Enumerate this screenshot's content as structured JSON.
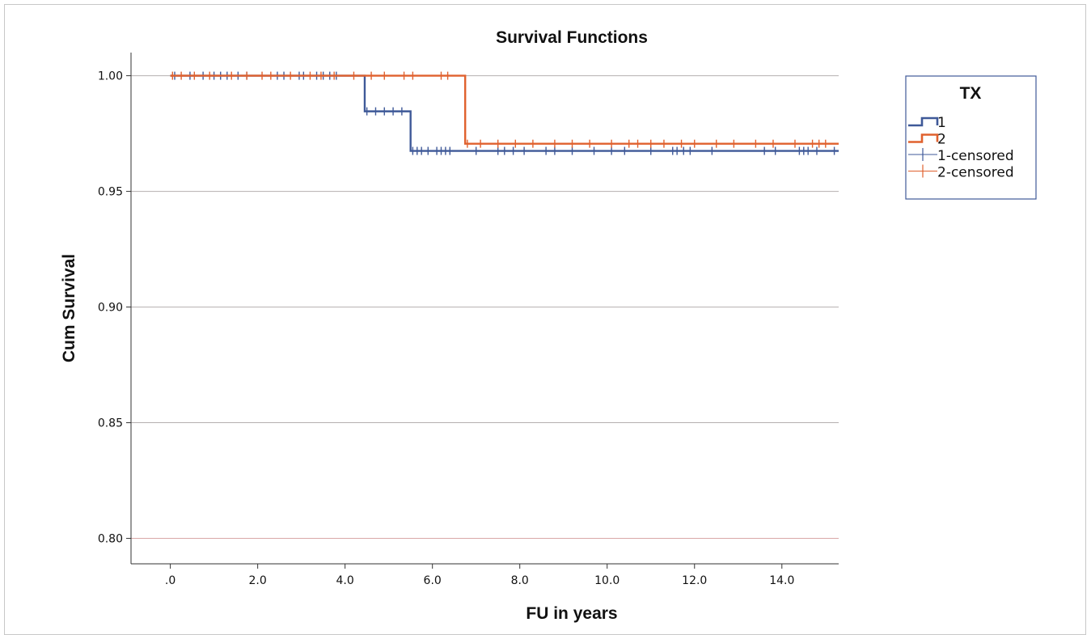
{
  "chart_data": {
    "type": "line",
    "subtype": "kaplan-meier",
    "title": "Survival Functions",
    "xlabel": "FU in years",
    "ylabel": "Cum Survival",
    "xlim": [
      -0.9,
      15.3
    ],
    "ylim": [
      0.789,
      1.01
    ],
    "xticks": [
      0,
      2,
      4,
      6,
      8,
      10,
      12,
      14
    ],
    "xtick_labels": [
      ".0",
      "2.0",
      "4.0",
      "6.0",
      "8.0",
      "10.0",
      "12.0",
      "14.0"
    ],
    "yticks": [
      0.8,
      0.85,
      0.9,
      0.95,
      1.0
    ],
    "ytick_labels": [
      "0.80",
      "0.85",
      "0.90",
      "0.95",
      "1.00"
    ],
    "grid": "horizontal",
    "legend": {
      "title": "TX",
      "position": "top-right",
      "entries": [
        {
          "label": "1",
          "kind": "step",
          "series": 0
        },
        {
          "label": "2",
          "kind": "step",
          "series": 1
        },
        {
          "label": "1-censored",
          "kind": "censor",
          "series": 0
        },
        {
          "label": "2-censored",
          "kind": "censor",
          "series": 1
        }
      ]
    },
    "series": [
      {
        "name": "1",
        "color": "#3f5998",
        "steps": [
          [
            0,
            1.0
          ],
          [
            4.45,
            0.9846
          ],
          [
            5.5,
            0.9675
          ],
          [
            15.3,
            0.9675
          ]
        ],
        "censored": [
          [
            0.1,
            1.0
          ],
          [
            0.45,
            1.0
          ],
          [
            0.75,
            1.0
          ],
          [
            1.0,
            1.0
          ],
          [
            1.15,
            1.0
          ],
          [
            1.3,
            1.0
          ],
          [
            1.55,
            1.0
          ],
          [
            1.75,
            1.0
          ],
          [
            2.45,
            1.0
          ],
          [
            2.6,
            1.0
          ],
          [
            2.95,
            1.0
          ],
          [
            3.05,
            1.0
          ],
          [
            3.35,
            1.0
          ],
          [
            3.5,
            1.0
          ],
          [
            3.65,
            1.0
          ],
          [
            3.8,
            1.0
          ],
          [
            4.5,
            0.9846
          ],
          [
            4.7,
            0.9846
          ],
          [
            4.9,
            0.9846
          ],
          [
            5.1,
            0.9846
          ],
          [
            5.3,
            0.9846
          ],
          [
            5.55,
            0.9675
          ],
          [
            5.65,
            0.9675
          ],
          [
            5.75,
            0.9675
          ],
          [
            5.9,
            0.9675
          ],
          [
            6.1,
            0.9675
          ],
          [
            6.2,
            0.9675
          ],
          [
            6.3,
            0.9675
          ],
          [
            6.4,
            0.9675
          ],
          [
            7.0,
            0.9675
          ],
          [
            7.5,
            0.9675
          ],
          [
            7.65,
            0.9675
          ],
          [
            7.85,
            0.9675
          ],
          [
            8.1,
            0.9675
          ],
          [
            8.6,
            0.9675
          ],
          [
            8.8,
            0.9675
          ],
          [
            9.2,
            0.9675
          ],
          [
            9.7,
            0.9675
          ],
          [
            10.1,
            0.9675
          ],
          [
            10.4,
            0.9675
          ],
          [
            11.0,
            0.9675
          ],
          [
            11.5,
            0.9675
          ],
          [
            11.6,
            0.9675
          ],
          [
            11.75,
            0.9675
          ],
          [
            11.9,
            0.9675
          ],
          [
            12.4,
            0.9675
          ],
          [
            13.6,
            0.9675
          ],
          [
            13.85,
            0.9675
          ],
          [
            14.4,
            0.9675
          ],
          [
            14.5,
            0.9675
          ],
          [
            14.6,
            0.9675
          ],
          [
            14.8,
            0.9675
          ],
          [
            15.2,
            0.9675
          ]
        ]
      },
      {
        "name": "2",
        "color": "#e0612e",
        "steps": [
          [
            0,
            1.0
          ],
          [
            6.75,
            0.9706
          ],
          [
            15.3,
            0.9706
          ]
        ],
        "censored": [
          [
            0.05,
            1.0
          ],
          [
            0.25,
            1.0
          ],
          [
            0.55,
            1.0
          ],
          [
            0.9,
            1.0
          ],
          [
            1.4,
            1.0
          ],
          [
            1.75,
            1.0
          ],
          [
            2.1,
            1.0
          ],
          [
            2.3,
            1.0
          ],
          [
            2.75,
            1.0
          ],
          [
            3.2,
            1.0
          ],
          [
            3.45,
            1.0
          ],
          [
            3.75,
            1.0
          ],
          [
            4.2,
            1.0
          ],
          [
            4.6,
            1.0
          ],
          [
            4.9,
            1.0
          ],
          [
            5.35,
            1.0
          ],
          [
            5.55,
            1.0
          ],
          [
            6.2,
            1.0
          ],
          [
            6.35,
            1.0
          ],
          [
            6.8,
            0.9706
          ],
          [
            7.1,
            0.9706
          ],
          [
            7.5,
            0.9706
          ],
          [
            7.9,
            0.9706
          ],
          [
            8.3,
            0.9706
          ],
          [
            8.8,
            0.9706
          ],
          [
            9.2,
            0.9706
          ],
          [
            9.6,
            0.9706
          ],
          [
            10.1,
            0.9706
          ],
          [
            10.5,
            0.9706
          ],
          [
            10.7,
            0.9706
          ],
          [
            11.0,
            0.9706
          ],
          [
            11.3,
            0.9706
          ],
          [
            11.7,
            0.9706
          ],
          [
            12.0,
            0.9706
          ],
          [
            12.5,
            0.9706
          ],
          [
            12.9,
            0.9706
          ],
          [
            13.4,
            0.9706
          ],
          [
            13.8,
            0.9706
          ],
          [
            14.3,
            0.9706
          ],
          [
            14.7,
            0.9706
          ],
          [
            14.85,
            0.9706
          ],
          [
            15.0,
            0.9706
          ]
        ]
      }
    ]
  }
}
